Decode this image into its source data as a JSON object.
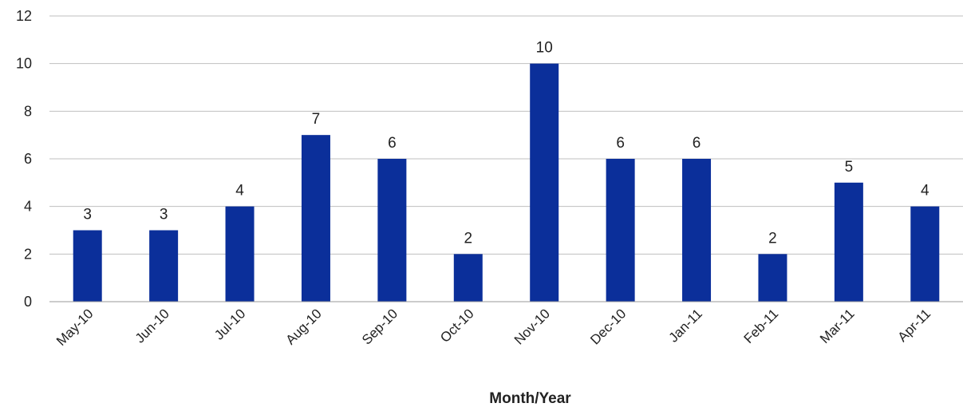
{
  "chart_data": {
    "type": "bar",
    "title": "",
    "xlabel": "Month/Year",
    "ylabel": "",
    "categories": [
      "May-10",
      "Jun-10",
      "Jul-10",
      "Aug-10",
      "Sep-10",
      "Oct-10",
      "Nov-10",
      "Dec-10",
      "Jan-11",
      "Feb-11",
      "Mar-11",
      "Apr-11"
    ],
    "values": [
      3,
      3,
      4,
      7,
      6,
      2,
      10,
      6,
      6,
      2,
      5,
      4
    ],
    "ylim": [
      0,
      12
    ],
    "yticks": [
      0,
      2,
      4,
      6,
      8,
      10,
      12
    ],
    "grid": true,
    "legend": "none",
    "data_labels": true,
    "bar_color": "#0b2f9a"
  }
}
